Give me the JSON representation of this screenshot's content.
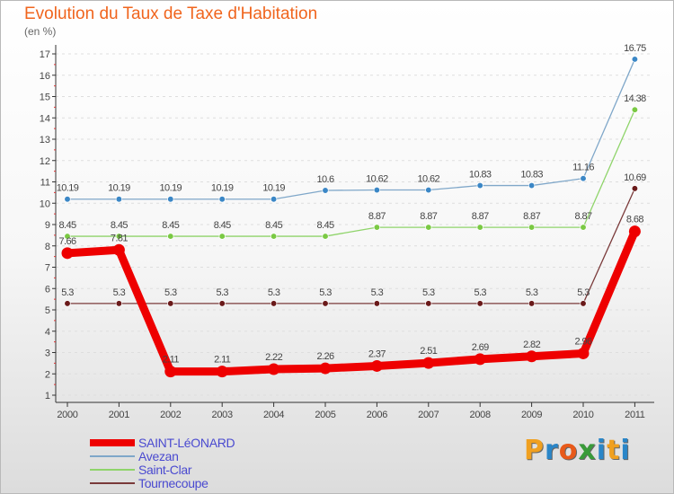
{
  "title": "Evolution du Taux de Taxe d'Habitation",
  "subtitle": "(en %)",
  "logo": {
    "letters": [
      "P",
      "r",
      "o",
      "x",
      "i",
      "t",
      "i"
    ],
    "colors": [
      "#f0a020",
      "#2a86c8",
      "#e85a1a",
      "#3a9b3a",
      "#2a86c8",
      "#f0a020",
      "#2a86c8"
    ]
  },
  "chart_data": {
    "type": "line",
    "title": "Evolution du Taux de Taxe d'Habitation",
    "ylabel": "(en %)",
    "xlabel": "",
    "ylim": [
      0.6,
      17.5
    ],
    "yticks": [
      1,
      2,
      3,
      4,
      5,
      6,
      7,
      8,
      9,
      10,
      11,
      12,
      13,
      14,
      15,
      16,
      17
    ],
    "categories": [
      "2000",
      "2001",
      "2002",
      "2003",
      "2004",
      "2005",
      "2006",
      "2007",
      "2008",
      "2009",
      "2010",
      "2011"
    ],
    "grid": "horizontal dashed (hidden behind labels)",
    "legend_position": "bottom-left",
    "series": [
      {
        "name": "SAINT-LéONARD",
        "color": "#ee0000",
        "emphasis": true,
        "values": [
          7.66,
          7.81,
          2.11,
          2.11,
          2.22,
          2.26,
          2.37,
          2.51,
          2.69,
          2.82,
          2.96,
          8.68
        ],
        "labels": [
          "7.66",
          "7.81",
          "2.11",
          "2.11",
          "2.22",
          "2.26",
          "2.37",
          "2.51",
          "2.69",
          "2.82",
          "2.96",
          "8.68"
        ]
      },
      {
        "name": "Avezan",
        "color": "#7fa7c9",
        "marker": "#3b87c6",
        "values": [
          10.19,
          10.19,
          10.19,
          10.19,
          10.19,
          10.6,
          10.62,
          10.62,
          10.83,
          10.83,
          11.16,
          16.75
        ],
        "labels": [
          "10.19",
          "10.19",
          "10.19",
          "10.19",
          "10.19",
          "10.6",
          "10.62",
          "10.62",
          "10.83",
          "10.83",
          "11.16",
          "16.75"
        ]
      },
      {
        "name": "Saint-Clar",
        "color": "#8fd46a",
        "marker": "#7ac943",
        "values": [
          8.45,
          8.45,
          8.45,
          8.45,
          8.45,
          8.45,
          8.87,
          8.87,
          8.87,
          8.87,
          8.87,
          14.38
        ],
        "labels": [
          "8.45",
          "8.45",
          "8.45",
          "8.45",
          "8.45",
          "8.45",
          "8.87",
          "8.87",
          "8.87",
          "8.87",
          "8.87",
          "14.38"
        ]
      },
      {
        "name": "Tournecoupe",
        "color": "#7a3a3a",
        "marker": "#6a1a1a",
        "values": [
          5.3,
          5.3,
          5.3,
          5.3,
          5.3,
          5.3,
          5.3,
          5.3,
          5.3,
          5.3,
          5.3,
          10.69
        ],
        "labels": [
          "5.3",
          "5.3",
          "5.3",
          "5.3",
          "5.3",
          "5.3",
          "5.3",
          "5.3",
          "5.3",
          "5.3",
          "5.3",
          "10.69"
        ]
      }
    ]
  }
}
